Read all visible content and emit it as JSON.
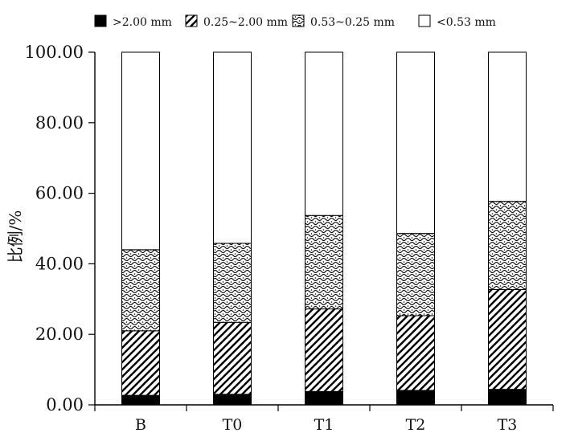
{
  "chart_data": {
    "type": "bar",
    "stacked": true,
    "xlabel": "",
    "ylabel": "比例/%",
    "categories": [
      "B",
      "T0",
      "T1",
      "T2",
      "T3"
    ],
    "ylim": [
      0,
      100
    ],
    "yticks": [
      "0.00",
      "20.00",
      "40.00",
      "60.00",
      "80.00",
      "100.00"
    ],
    "legend_position": "top",
    "series": [
      {
        "name": ">2.00 mm",
        "pattern": "solid-black",
        "values": [
          2.7,
          3.0,
          3.8,
          4.1,
          4.4
        ]
      },
      {
        "name": "0.25~2.00 mm",
        "pattern": "diagonal-hatch",
        "values": [
          18.3,
          20.4,
          23.4,
          21.2,
          28.3
        ]
      },
      {
        "name": "0.53~0.25 mm",
        "pattern": "wave-dots",
        "values": [
          23.0,
          22.4,
          26.5,
          23.3,
          25.0
        ]
      },
      {
        "name": "<0.53 mm",
        "pattern": "white",
        "values": [
          56.0,
          54.2,
          46.3,
          51.4,
          42.3
        ]
      }
    ]
  }
}
